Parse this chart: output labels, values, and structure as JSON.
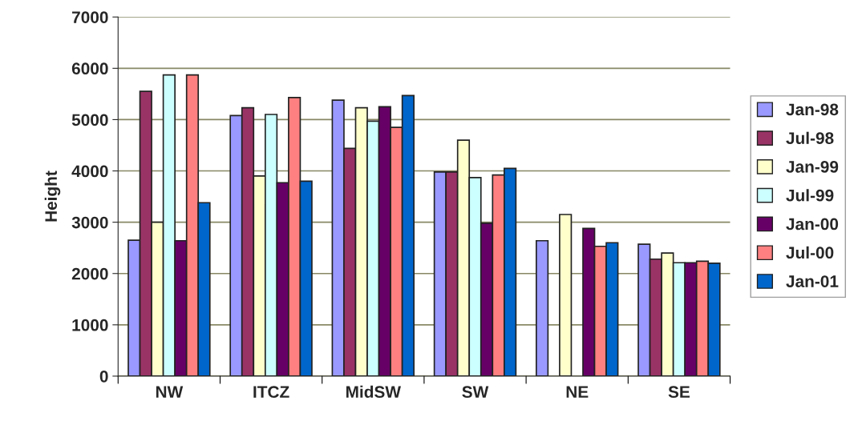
{
  "chart_data": {
    "type": "bar",
    "ylabel": "Height",
    "categories": [
      "NW",
      "ITCZ",
      "MidSW",
      "SW",
      "NE",
      "SE"
    ],
    "series": [
      {
        "name": "Jan-98",
        "color": "#9999ff",
        "values": [
          2650,
          5080,
          5380,
          3980,
          2640,
          2570
        ]
      },
      {
        "name": "Jul-98",
        "color": "#993366",
        "values": [
          5550,
          5230,
          4440,
          3980,
          null,
          2280
        ]
      },
      {
        "name": "Jan-99",
        "color": "#ffffcc",
        "values": [
          3000,
          3900,
          5230,
          4600,
          3150,
          2400
        ]
      },
      {
        "name": "Jul-99",
        "color": "#ccffff",
        "values": [
          5870,
          5100,
          4970,
          3870,
          null,
          2210
        ]
      },
      {
        "name": "Jan-00",
        "color": "#660066",
        "values": [
          2640,
          3770,
          5250,
          2980,
          2880,
          2210
        ]
      },
      {
        "name": "Jul-00",
        "color": "#ff8080",
        "values": [
          5870,
          5430,
          4850,
          3920,
          2530,
          2240
        ]
      },
      {
        "name": "Jan-01",
        "color": "#0066cc",
        "values": [
          3380,
          3800,
          5470,
          4050,
          2600,
          2200
        ]
      }
    ],
    "ylim": [
      0,
      7000
    ],
    "yticks": [
      0,
      1000,
      2000,
      3000,
      4000,
      5000,
      6000,
      7000
    ],
    "grid": "y",
    "legend": "right"
  }
}
